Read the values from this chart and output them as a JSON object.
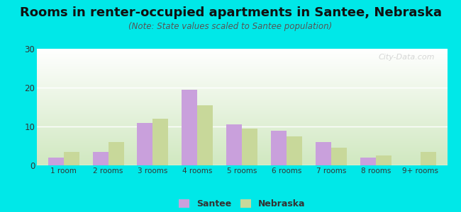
{
  "title": "Rooms in renter-occupied apartments in Santee, Nebraska",
  "subtitle": "(Note: State values scaled to Santee population)",
  "categories": [
    "1 room",
    "2 rooms",
    "3 rooms",
    "4 rooms",
    "5 rooms",
    "6 rooms",
    "7 rooms",
    "8 rooms",
    "9+ rooms"
  ],
  "santee_values": [
    2,
    3.5,
    11,
    19.5,
    10.5,
    9,
    6,
    2,
    0
  ],
  "nebraska_values": [
    3.5,
    6,
    12,
    15.5,
    9.5,
    7.5,
    4.5,
    2.5,
    3.5
  ],
  "santee_color": "#c9a0dc",
  "nebraska_color": "#c8d89a",
  "ylim": [
    0,
    30
  ],
  "yticks": [
    0,
    10,
    20,
    30
  ],
  "background_color": "#00e8e8",
  "plot_bg_top": "#ffffff",
  "plot_bg_bottom": "#d0e8c0",
  "title_fontsize": 13,
  "subtitle_fontsize": 8.5,
  "bar_width": 0.35,
  "watermark": "City-Data.com"
}
